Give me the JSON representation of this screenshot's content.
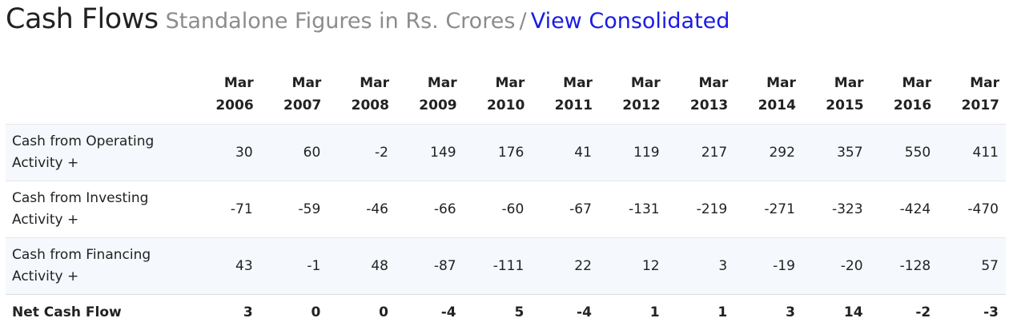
{
  "heading": {
    "title": "Cash Flows",
    "subtitle": "Standalone Figures in Rs. Crores",
    "separator": "/",
    "link_label": "View Consolidated"
  },
  "columns": [
    {
      "month": "Mar",
      "year": "2006"
    },
    {
      "month": "Mar",
      "year": "2007"
    },
    {
      "month": "Mar",
      "year": "2008"
    },
    {
      "month": "Mar",
      "year": "2009"
    },
    {
      "month": "Mar",
      "year": "2010"
    },
    {
      "month": "Mar",
      "year": "2011"
    },
    {
      "month": "Mar",
      "year": "2012"
    },
    {
      "month": "Mar",
      "year": "2013"
    },
    {
      "month": "Mar",
      "year": "2014"
    },
    {
      "month": "Mar",
      "year": "2015"
    },
    {
      "month": "Mar",
      "year": "2016"
    },
    {
      "month": "Mar",
      "year": "2017"
    }
  ],
  "rows": [
    {
      "label_line1": "Cash from Operating",
      "label_line2": "Activity +",
      "values": [
        "30",
        "60",
        "-2",
        "149",
        "176",
        "41",
        "119",
        "217",
        "292",
        "357",
        "550",
        "411"
      ]
    },
    {
      "label_line1": "Cash from Investing",
      "label_line2": "Activity +",
      "values": [
        "-71",
        "-59",
        "-46",
        "-66",
        "-60",
        "-67",
        "-131",
        "-219",
        "-271",
        "-323",
        "-424",
        "-470"
      ]
    },
    {
      "label_line1": "Cash from Financing",
      "label_line2": "Activity +",
      "values": [
        "43",
        "-1",
        "48",
        "-87",
        "-111",
        "22",
        "12",
        "3",
        "-19",
        "-20",
        "-128",
        "57"
      ]
    }
  ],
  "total": {
    "label": "Net Cash Flow",
    "values": [
      "3",
      "0",
      "0",
      "-4",
      "5",
      "-4",
      "1",
      "1",
      "3",
      "14",
      "-2",
      "-3"
    ]
  }
}
